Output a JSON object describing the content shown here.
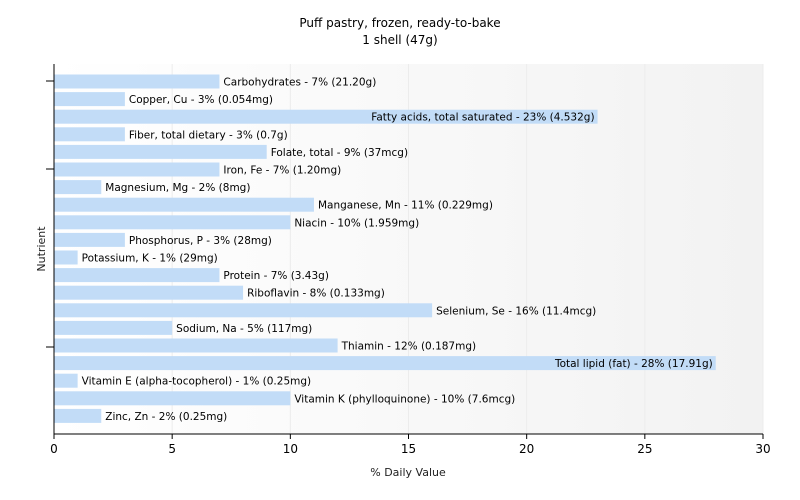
{
  "chart_data": {
    "type": "bar",
    "orientation": "horizontal",
    "title": "Puff pastry, frozen, ready-to-bake",
    "subtitle": "1 shell (47g)",
    "xlabel": "% Daily Value",
    "ylabel": "Nutrient",
    "xlim": [
      0,
      30
    ],
    "xticks": [
      0,
      5,
      10,
      15,
      20,
      25,
      30
    ],
    "grid": true,
    "bar_color": "#c2dcf7",
    "categories": [
      "Carbohydrates",
      "Copper, Cu",
      "Fatty acids, total saturated",
      "Fiber, total dietary",
      "Folate, total",
      "Iron, Fe",
      "Magnesium, Mg",
      "Manganese, Mn",
      "Niacin",
      "Phosphorus, P",
      "Potassium, K",
      "Protein",
      "Riboflavin",
      "Selenium, Se",
      "Sodium, Na",
      "Thiamin",
      "Total lipid (fat)",
      "Vitamin E (alpha-tocopherol)",
      "Vitamin K (phylloquinone)",
      "Zinc, Zn"
    ],
    "values": [
      7,
      3,
      23,
      3,
      9,
      7,
      2,
      11,
      10,
      3,
      1,
      7,
      8,
      16,
      5,
      12,
      28,
      1,
      10,
      2
    ],
    "labels": [
      "Carbohydrates - 7% (21.20g)",
      "Copper, Cu - 3% (0.054mg)",
      "Fatty acids, total saturated - 23% (4.532g)",
      "Fiber, total dietary - 3% (0.7g)",
      "Folate, total - 9% (37mcg)",
      "Iron, Fe - 7% (1.20mg)",
      "Magnesium, Mg - 2% (8mg)",
      "Manganese, Mn - 11% (0.229mg)",
      "Niacin - 10% (1.959mg)",
      "Phosphorus, P - 3% (28mg)",
      "Potassium, K - 1% (29mg)",
      "Protein - 7% (3.43g)",
      "Riboflavin - 8% (0.133mg)",
      "Selenium, Se - 16% (11.4mcg)",
      "Sodium, Na - 5% (117mg)",
      "Thiamin - 12% (0.187mg)",
      "Total lipid (fat) - 28% (17.91g)",
      "Vitamin E (alpha-tocopherol) - 1% (0.25mg)",
      "Vitamin K (phylloquinone) - 10% (7.6mcg)",
      "Zinc, Zn - 2% (0.25mg)"
    ]
  }
}
